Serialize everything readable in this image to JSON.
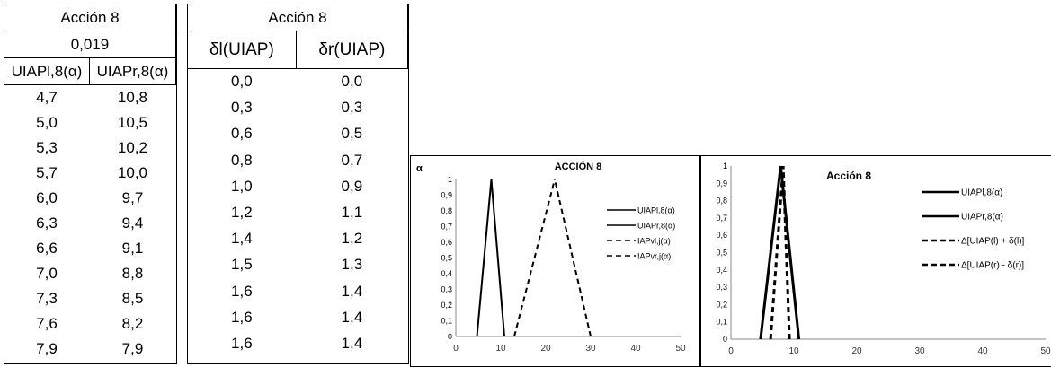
{
  "table1": {
    "title": "Acción 8",
    "value": "0,019",
    "headers": [
      "UIAPl,8(α)",
      "UIAPr,8(α)"
    ],
    "rows": [
      [
        "4,7",
        "10,8"
      ],
      [
        "5,0",
        "10,5"
      ],
      [
        "5,3",
        "10,2"
      ],
      [
        "5,7",
        "10,0"
      ],
      [
        "6,0",
        "9,7"
      ],
      [
        "6,3",
        "9,4"
      ],
      [
        "6,6",
        "9,1"
      ],
      [
        "7,0",
        "8,8"
      ],
      [
        "7,3",
        "8,5"
      ],
      [
        "7,6",
        "8,2"
      ],
      [
        "7,9",
        "7,9"
      ]
    ]
  },
  "table2": {
    "title": "Acción 8",
    "headers": [
      "δl(UIAP)",
      "δr(UIAP)"
    ],
    "rows": [
      [
        "0,0",
        "0,0"
      ],
      [
        "0,3",
        "0,3"
      ],
      [
        "0,6",
        "0,5"
      ],
      [
        "0,8",
        "0,7"
      ],
      [
        "1,0",
        "0,9"
      ],
      [
        "1,2",
        "1,1"
      ],
      [
        "1,4",
        "1,2"
      ],
      [
        "1,5",
        "1,3"
      ],
      [
        "1,6",
        "1,4"
      ],
      [
        "1,6",
        "1,4"
      ],
      [
        "1,6",
        "1,4"
      ]
    ]
  },
  "chart_data": [
    {
      "type": "line",
      "title": "ACCIÓN 8",
      "ylabel": "α",
      "xlim": [
        0,
        50
      ],
      "ylim": [
        0,
        1
      ],
      "xticks": [
        0,
        10,
        20,
        30,
        40,
        50
      ],
      "yticks": [
        "0",
        "0,1",
        "0,2",
        "0,3",
        "0,4",
        "0,5",
        "0,6",
        "0,7",
        "0,8",
        "0,9",
        "1"
      ],
      "legend_position": "right",
      "series": [
        {
          "name": "UIAPl,8(α)",
          "style": "solid",
          "points": [
            [
              4.7,
              0
            ],
            [
              7.9,
              1
            ]
          ]
        },
        {
          "name": "UIAPr,8(α)",
          "style": "solid",
          "points": [
            [
              10.8,
              0
            ],
            [
              7.9,
              1
            ]
          ]
        },
        {
          "name": "IAPvl,j(α)",
          "style": "dashed",
          "points": [
            [
              13,
              0
            ],
            [
              22,
              1
            ]
          ]
        },
        {
          "name": "IAPvr,j(α)",
          "style": "dashed",
          "points": [
            [
              30,
              0
            ],
            [
              22,
              1
            ]
          ]
        }
      ]
    },
    {
      "type": "line",
      "title": "Acción 8",
      "xlim": [
        0,
        50
      ],
      "ylim": [
        0,
        1
      ],
      "xticks": [
        0,
        10,
        20,
        30,
        40,
        50
      ],
      "yticks": [
        "0",
        "0,1",
        "0,2",
        "0,3",
        "0,4",
        "0,5",
        "0,6",
        "0,7",
        "0,8",
        "0,9",
        "1"
      ],
      "legend_position": "right",
      "series": [
        {
          "name": "UIAPl,8(α)",
          "style": "solid",
          "points": [
            [
              4.7,
              0
            ],
            [
              7.9,
              1
            ]
          ]
        },
        {
          "name": "UIAPr,8(α)",
          "style": "solid",
          "points": [
            [
              10.8,
              0
            ],
            [
              7.9,
              1
            ]
          ]
        },
        {
          "name": "Δ[UIAP(l) + δ(l)]",
          "style": "dashed",
          "points": [
            [
              6.3,
              0
            ],
            [
              8.3,
              1
            ]
          ]
        },
        {
          "name": "Δ[UIAP(r) - δ(r)]",
          "style": "dashed",
          "points": [
            [
              9.3,
              0
            ],
            [
              8.3,
              1
            ]
          ]
        }
      ]
    }
  ]
}
